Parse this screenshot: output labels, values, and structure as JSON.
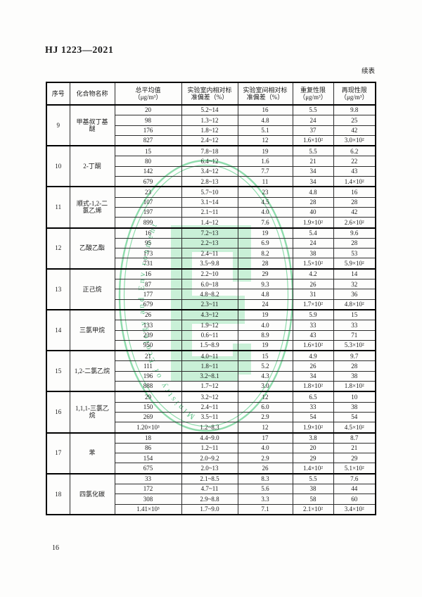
{
  "page": {
    "standard_code": "HJ 1223—2021",
    "continued_label": "续表",
    "page_number": "16"
  },
  "table": {
    "headers": [
      "序号",
      "化合物名称",
      "总平均值\n（μg/m³）",
      "实验室内相对标\n准偏差（%）",
      "实验室间相对标\n准偏差（%）",
      "重复性限\n（μg/m³）",
      "再现性限\n（μg/m³）"
    ],
    "groups": [
      {
        "no": "9",
        "name": "甲基叔丁基\n醚",
        "rows": [
          [
            "20",
            "5.2~14",
            "16",
            "5.5",
            "9.8"
          ],
          [
            "98",
            "1.3~12",
            "4.8",
            "24",
            "25"
          ],
          [
            "176",
            "1.8~12",
            "5.1",
            "37",
            "42"
          ],
          [
            "827",
            "2.4~12",
            "12",
            "1.6×10²",
            "3.0×10²"
          ]
        ]
      },
      {
        "no": "10",
        "name": "2-丁酮",
        "rows": [
          [
            "15",
            "7.8~18",
            "19",
            "5.5",
            "6.2"
          ],
          [
            "80",
            "6.4~12",
            "1.6",
            "21",
            "22"
          ],
          [
            "142",
            "3.4~12",
            "7.7",
            "34",
            "43"
          ],
          [
            "679",
            "2.8~13",
            "11",
            "34",
            "1.4×10²"
          ]
        ]
      },
      {
        "no": "11",
        "name": "顺式-1,2-二\n氯乙烯",
        "rows": [
          [
            "23",
            "5.7~10",
            "23",
            "4.8",
            "16"
          ],
          [
            "107",
            "3.1~14",
            "4.5",
            "28",
            "28"
          ],
          [
            "197",
            "2.1~11",
            "4.0",
            "40",
            "42"
          ],
          [
            "899",
            "1.4~12",
            "7.6",
            "1.9×10²",
            "2.6×10²"
          ]
        ]
      },
      {
        "no": "12",
        "name": "乙酸乙酯",
        "rows": [
          [
            "16",
            "7.2~13",
            "19",
            "5.4",
            "9.6"
          ],
          [
            "95",
            "2.2~13",
            "6.9",
            "24",
            "28"
          ],
          [
            "173",
            "2.4~11",
            "8.2",
            "38",
            "53"
          ],
          [
            "731",
            "3.5~9.8",
            "28",
            "1.5×10²",
            "5.9×10²"
          ]
        ]
      },
      {
        "no": "13",
        "name": "正己烷",
        "rows": [
          [
            "16",
            "2.2~10",
            "29",
            "4.2",
            "14"
          ],
          [
            "87",
            "6.0~18",
            "9.3",
            "26",
            "32"
          ],
          [
            "177",
            "4.8~8.2",
            "4.8",
            "31",
            "36"
          ],
          [
            "679",
            "2.3~11",
            "24",
            "1.7×10²",
            "4.8×10²"
          ]
        ]
      },
      {
        "no": "14",
        "name": "三氯甲烷",
        "rows": [
          [
            "26",
            "4.3~12",
            "19",
            "5.9",
            "15"
          ],
          [
            "133",
            "1.9~12",
            "4.0",
            "33",
            "33"
          ],
          [
            "239",
            "0.6~11",
            "8.9",
            "43",
            "71"
          ],
          [
            "950",
            "1.5~8.9",
            "19",
            "1.6×10²",
            "5.3×10²"
          ]
        ]
      },
      {
        "no": "15",
        "name": "1,2-二氯乙烷",
        "rows": [
          [
            "21",
            "4.0~11",
            "15",
            "4.9",
            "9.7"
          ],
          [
            "111",
            "1.8~11",
            "5.2",
            "26",
            "28"
          ],
          [
            "196",
            "3.2~8.1",
            "4.3",
            "34",
            "38"
          ],
          [
            "888",
            "1.7~12",
            "3.0",
            "1.8×10²",
            "1.8×10²"
          ]
        ]
      },
      {
        "no": "16",
        "name": "1,1,1-三氯乙\n烷",
        "rows": [
          [
            "29",
            "3.2~12",
            "12",
            "6.5",
            "10"
          ],
          [
            "150",
            "2.4~11",
            "6.0",
            "33",
            "38"
          ],
          [
            "269",
            "3.5~11",
            "2.9",
            "54",
            "54"
          ],
          [
            "1.20×10³",
            "1.2~8.3",
            "12",
            "1.9×10²",
            "4.5×10²"
          ]
        ]
      },
      {
        "no": "17",
        "name": "苯",
        "rows": [
          [
            "18",
            "4.4~9.0",
            "17",
            "3.8",
            "8.7"
          ],
          [
            "86",
            "1.2~11",
            "4.0",
            "20",
            "21"
          ],
          [
            "154",
            "2.0~9.2",
            "2.9",
            "29",
            "29"
          ],
          [
            "675",
            "2.0~13",
            "26",
            "1.4×10²",
            "5.1×10²"
          ]
        ]
      },
      {
        "no": "18",
        "name": "四氯化碳",
        "rows": [
          [
            "33",
            "2.1~8.5",
            "8.3",
            "5.5",
            "7.6"
          ],
          [
            "172",
            "4.7~11",
            "5.6",
            "38",
            "44"
          ],
          [
            "308",
            "2.9~8.8",
            "3.3",
            "58",
            "60"
          ],
          [
            "1.41×10³",
            "1.7~9.0",
            "7.1",
            "2.1×10²",
            "3.4×10²"
          ]
        ]
      }
    ]
  },
  "watermark": {
    "ring_text": "Ministry of Ecology and Environment",
    "ring_color": "#8edcac",
    "text_color": "#5fc189",
    "block_color": "#c9f0d7"
  }
}
